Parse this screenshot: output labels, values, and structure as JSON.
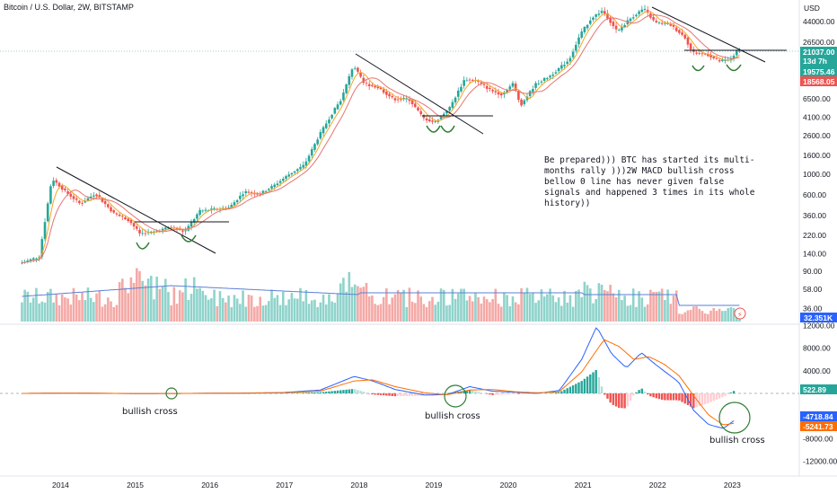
{
  "chart_title": "Bitcoin / U.S. Dollar, 2W, BITSTAMP",
  "currency_label": "USD",
  "chart_data": {
    "type": "candlestick",
    "price_axis": {
      "scale": "log",
      "ticks": [
        "44000.00",
        "26500.00",
        "11000.00",
        "6500.00",
        "4100.00",
        "2600.00",
        "1600.00",
        "1000.00",
        "600.00",
        "360.00",
        "220.00",
        "140.00",
        "90.00",
        "58.00",
        "36.00"
      ]
    },
    "time_axis": {
      "ticks": [
        "2014",
        "2015",
        "2016",
        "2017",
        "2018",
        "2019",
        "2020",
        "2021",
        "2022",
        "2023"
      ]
    },
    "price_path": [
      [
        2013.5,
        110
      ],
      [
        2013.75,
        130
      ],
      [
        2013.92,
        900
      ],
      [
        2014.1,
        650
      ],
      [
        2014.3,
        480
      ],
      [
        2014.5,
        620
      ],
      [
        2014.75,
        380
      ],
      [
        2014.95,
        320
      ],
      [
        2015.1,
        230
      ],
      [
        2015.3,
        240
      ],
      [
        2015.5,
        270
      ],
      [
        2015.7,
        240
      ],
      [
        2015.9,
        400
      ],
      [
        2016.1,
        420
      ],
      [
        2016.3,
        440
      ],
      [
        2016.5,
        650
      ],
      [
        2016.7,
        610
      ],
      [
        2016.9,
        760
      ],
      [
        2017.1,
        1000
      ],
      [
        2017.3,
        1250
      ],
      [
        2017.5,
        2600
      ],
      [
        2017.65,
        4200
      ],
      [
        2017.8,
        6500
      ],
      [
        2017.96,
        15000
      ],
      [
        2018.1,
        9500
      ],
      [
        2018.3,
        8500
      ],
      [
        2018.5,
        6400
      ],
      [
        2018.7,
        6500
      ],
      [
        2018.9,
        4000
      ],
      [
        2019.05,
        3600
      ],
      [
        2019.25,
        5200
      ],
      [
        2019.45,
        10500
      ],
      [
        2019.6,
        10200
      ],
      [
        2019.8,
        8000
      ],
      [
        2019.95,
        7200
      ],
      [
        2020.1,
        9500
      ],
      [
        2020.2,
        5500
      ],
      [
        2020.4,
        9300
      ],
      [
        2020.6,
        11500
      ],
      [
        2020.85,
        17000
      ],
      [
        2021.0,
        32000
      ],
      [
        2021.15,
        48000
      ],
      [
        2021.3,
        58000
      ],
      [
        2021.5,
        34000
      ],
      [
        2021.65,
        46000
      ],
      [
        2021.85,
        61000
      ],
      [
        2022.0,
        43000
      ],
      [
        2022.2,
        41000
      ],
      [
        2022.4,
        30000
      ],
      [
        2022.5,
        20500
      ],
      [
        2022.7,
        19500
      ],
      [
        2022.85,
        16500
      ],
      [
        2023.0,
        16800
      ],
      [
        2023.1,
        21037
      ]
    ],
    "volume_ma_label": "32.351K",
    "price_tags": [
      {
        "text": "21037.00",
        "sub": "13d 7h",
        "color": "#26a69a"
      },
      {
        "text": "19575.46",
        "color": "#26a69a"
      },
      {
        "text": "18568.05",
        "color": "#ef5350"
      }
    ],
    "macd_axis": {
      "ticks": [
        "12000.00",
        "8000.00",
        "4000.00",
        "-8000.00",
        "-12000.00"
      ]
    },
    "macd_tags": [
      {
        "text": "522.89",
        "color": "#26a69a"
      },
      {
        "text": "-4718.84",
        "color": "#2962ff"
      },
      {
        "text": "-5241.73",
        "color": "#ff6d00"
      }
    ],
    "macd_path": [
      [
        2013.5,
        0
      ],
      [
        2014.0,
        50
      ],
      [
        2014.5,
        20
      ],
      [
        2015.0,
        -30
      ],
      [
        2015.5,
        -20
      ],
      [
        2016.0,
        30
      ],
      [
        2016.5,
        60
      ],
      [
        2017.0,
        150
      ],
      [
        2017.5,
        600
      ],
      [
        2017.95,
        3000
      ],
      [
        2018.2,
        2200
      ],
      [
        2018.5,
        700
      ],
      [
        2018.9,
        -300
      ],
      [
        2019.2,
        -200
      ],
      [
        2019.5,
        1200
      ],
      [
        2019.8,
        400
      ],
      [
        2020.1,
        200
      ],
      [
        2020.4,
        0
      ],
      [
        2020.7,
        500
      ],
      [
        2021.0,
        6000
      ],
      [
        2021.2,
        11800
      ],
      [
        2021.4,
        7000
      ],
      [
        2021.6,
        4500
      ],
      [
        2021.8,
        7200
      ],
      [
        2022.0,
        5000
      ],
      [
        2022.3,
        2000
      ],
      [
        2022.5,
        -3000
      ],
      [
        2022.7,
        -5500
      ],
      [
        2022.9,
        -6200
      ],
      [
        2023.05,
        -4718
      ]
    ],
    "signal_path": [
      [
        2013.5,
        0
      ],
      [
        2014.0,
        40
      ],
      [
        2014.5,
        30
      ],
      [
        2015.0,
        -20
      ],
      [
        2015.5,
        -20
      ],
      [
        2016.0,
        20
      ],
      [
        2016.5,
        50
      ],
      [
        2017.0,
        120
      ],
      [
        2017.5,
        400
      ],
      [
        2017.95,
        2200
      ],
      [
        2018.2,
        2400
      ],
      [
        2018.5,
        1200
      ],
      [
        2018.9,
        100
      ],
      [
        2019.2,
        -250
      ],
      [
        2019.5,
        600
      ],
      [
        2019.8,
        700
      ],
      [
        2020.1,
        300
      ],
      [
        2020.4,
        100
      ],
      [
        2020.7,
        300
      ],
      [
        2021.0,
        3800
      ],
      [
        2021.3,
        9500
      ],
      [
        2021.5,
        8300
      ],
      [
        2021.7,
        6000
      ],
      [
        2021.9,
        6500
      ],
      [
        2022.1,
        5200
      ],
      [
        2022.3,
        3200
      ],
      [
        2022.5,
        -400
      ],
      [
        2022.7,
        -3800
      ],
      [
        2022.9,
        -5600
      ],
      [
        2023.05,
        -5241
      ]
    ]
  },
  "annotations": {
    "note": [
      "Be prepared))) BTC has started its multi-",
      "months rally )))2W MACD  bullish cross",
      "bellow 0 line has never given false",
      "signals and happened 3 times in its whole",
      "history))"
    ],
    "cross1": "bullish cross",
    "cross2": "bullish cross",
    "cross3": "bullish cross"
  }
}
